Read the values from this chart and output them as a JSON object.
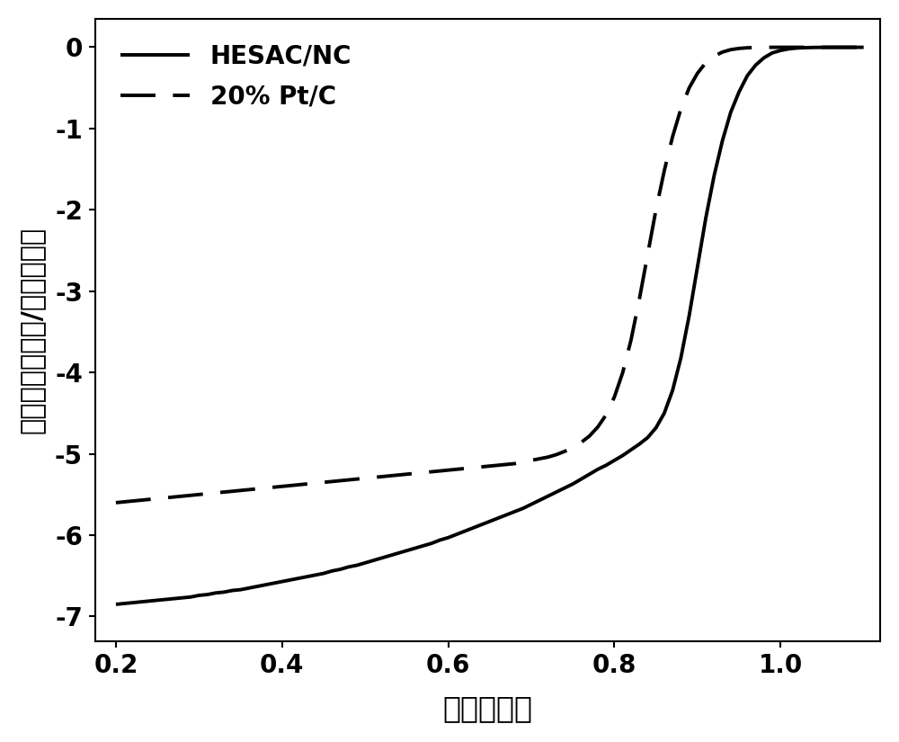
{
  "title": "",
  "xlabel": "电压（伏）",
  "ylabel": "电流密度（毫安/平方厘米）",
  "xlim": [
    0.175,
    1.12
  ],
  "ylim": [
    -7.3,
    0.35
  ],
  "xticks": [
    0.2,
    0.4,
    0.6,
    0.8,
    1.0
  ],
  "yticks": [
    0,
    -1,
    -2,
    -3,
    -4,
    -5,
    -6,
    -7
  ],
  "legend1": "HESAC/NC",
  "legend2": "20% Pt/C",
  "line_color": "#000000",
  "background_color": "#ffffff",
  "xlabel_fontsize": 24,
  "ylabel_fontsize": 22,
  "tick_fontsize": 20,
  "legend_fontsize": 20,
  "linewidth": 2.8,
  "hesac_x": [
    0.2,
    0.21,
    0.22,
    0.23,
    0.24,
    0.25,
    0.26,
    0.27,
    0.28,
    0.29,
    0.3,
    0.31,
    0.32,
    0.33,
    0.34,
    0.35,
    0.36,
    0.37,
    0.38,
    0.39,
    0.4,
    0.41,
    0.42,
    0.43,
    0.44,
    0.45,
    0.46,
    0.47,
    0.48,
    0.49,
    0.5,
    0.51,
    0.52,
    0.53,
    0.54,
    0.55,
    0.56,
    0.57,
    0.58,
    0.59,
    0.6,
    0.61,
    0.62,
    0.63,
    0.64,
    0.65,
    0.66,
    0.67,
    0.68,
    0.69,
    0.7,
    0.71,
    0.72,
    0.73,
    0.74,
    0.75,
    0.76,
    0.77,
    0.78,
    0.79,
    0.8,
    0.81,
    0.82,
    0.83,
    0.84,
    0.85,
    0.86,
    0.87,
    0.88,
    0.89,
    0.9,
    0.91,
    0.92,
    0.93,
    0.94,
    0.95,
    0.96,
    0.97,
    0.98,
    0.99,
    1.0,
    1.01,
    1.02,
    1.03,
    1.04,
    1.05,
    1.06,
    1.07,
    1.08,
    1.09,
    1.1
  ],
  "hesac_y": [
    -6.85,
    -6.84,
    -6.83,
    -6.82,
    -6.81,
    -6.8,
    -6.79,
    -6.78,
    -6.77,
    -6.76,
    -6.74,
    -6.73,
    -6.71,
    -6.7,
    -6.68,
    -6.67,
    -6.65,
    -6.63,
    -6.61,
    -6.59,
    -6.57,
    -6.55,
    -6.53,
    -6.51,
    -6.49,
    -6.47,
    -6.44,
    -6.42,
    -6.39,
    -6.37,
    -6.34,
    -6.31,
    -6.28,
    -6.25,
    -6.22,
    -6.19,
    -6.16,
    -6.13,
    -6.1,
    -6.06,
    -6.03,
    -5.99,
    -5.95,
    -5.91,
    -5.87,
    -5.83,
    -5.79,
    -5.75,
    -5.71,
    -5.67,
    -5.62,
    -5.57,
    -5.52,
    -5.47,
    -5.42,
    -5.37,
    -5.31,
    -5.25,
    -5.19,
    -5.14,
    -5.08,
    -5.02,
    -4.95,
    -4.88,
    -4.8,
    -4.68,
    -4.5,
    -4.22,
    -3.82,
    -3.3,
    -2.7,
    -2.1,
    -1.58,
    -1.15,
    -0.8,
    -0.55,
    -0.35,
    -0.22,
    -0.13,
    -0.07,
    -0.04,
    -0.02,
    -0.01,
    -0.006,
    -0.003,
    -0.002,
    -0.001,
    -0.001,
    -0.001,
    -0.001,
    -0.001
  ],
  "ptc_x": [
    0.2,
    0.21,
    0.22,
    0.23,
    0.24,
    0.25,
    0.26,
    0.27,
    0.28,
    0.29,
    0.3,
    0.31,
    0.32,
    0.33,
    0.34,
    0.35,
    0.36,
    0.37,
    0.38,
    0.39,
    0.4,
    0.41,
    0.42,
    0.43,
    0.44,
    0.45,
    0.46,
    0.47,
    0.48,
    0.49,
    0.5,
    0.51,
    0.52,
    0.53,
    0.54,
    0.55,
    0.56,
    0.57,
    0.58,
    0.59,
    0.6,
    0.61,
    0.62,
    0.63,
    0.64,
    0.65,
    0.66,
    0.67,
    0.68,
    0.69,
    0.7,
    0.71,
    0.72,
    0.73,
    0.74,
    0.75,
    0.76,
    0.77,
    0.78,
    0.79,
    0.8,
    0.81,
    0.82,
    0.83,
    0.84,
    0.85,
    0.86,
    0.87,
    0.88,
    0.89,
    0.9,
    0.91,
    0.92,
    0.93,
    0.94,
    0.95,
    0.96,
    0.97,
    0.98,
    0.99,
    1.0,
    1.01,
    1.02,
    1.03,
    1.04,
    1.05,
    1.06,
    1.07,
    1.08,
    1.09,
    1.1
  ],
  "ptc_y": [
    -5.6,
    -5.59,
    -5.58,
    -5.57,
    -5.56,
    -5.55,
    -5.54,
    -5.53,
    -5.52,
    -5.51,
    -5.5,
    -5.49,
    -5.48,
    -5.47,
    -5.46,
    -5.45,
    -5.44,
    -5.43,
    -5.42,
    -5.41,
    -5.4,
    -5.39,
    -5.38,
    -5.37,
    -5.36,
    -5.35,
    -5.34,
    -5.33,
    -5.32,
    -5.31,
    -5.3,
    -5.29,
    -5.28,
    -5.27,
    -5.26,
    -5.25,
    -5.24,
    -5.23,
    -5.22,
    -5.21,
    -5.2,
    -5.19,
    -5.18,
    -5.17,
    -5.16,
    -5.15,
    -5.14,
    -5.13,
    -5.12,
    -5.1,
    -5.08,
    -5.06,
    -5.04,
    -5.01,
    -4.97,
    -4.92,
    -4.86,
    -4.78,
    -4.67,
    -4.52,
    -4.3,
    -4.0,
    -3.6,
    -3.1,
    -2.55,
    -2.0,
    -1.52,
    -1.1,
    -0.76,
    -0.5,
    -0.32,
    -0.19,
    -0.11,
    -0.06,
    -0.03,
    -0.015,
    -0.007,
    -0.003,
    -0.002,
    -0.001,
    -0.001,
    -0.001,
    -0.001,
    -0.001,
    -0.001,
    -0.001,
    -0.001,
    -0.001,
    -0.001,
    -0.001,
    -0.001
  ]
}
